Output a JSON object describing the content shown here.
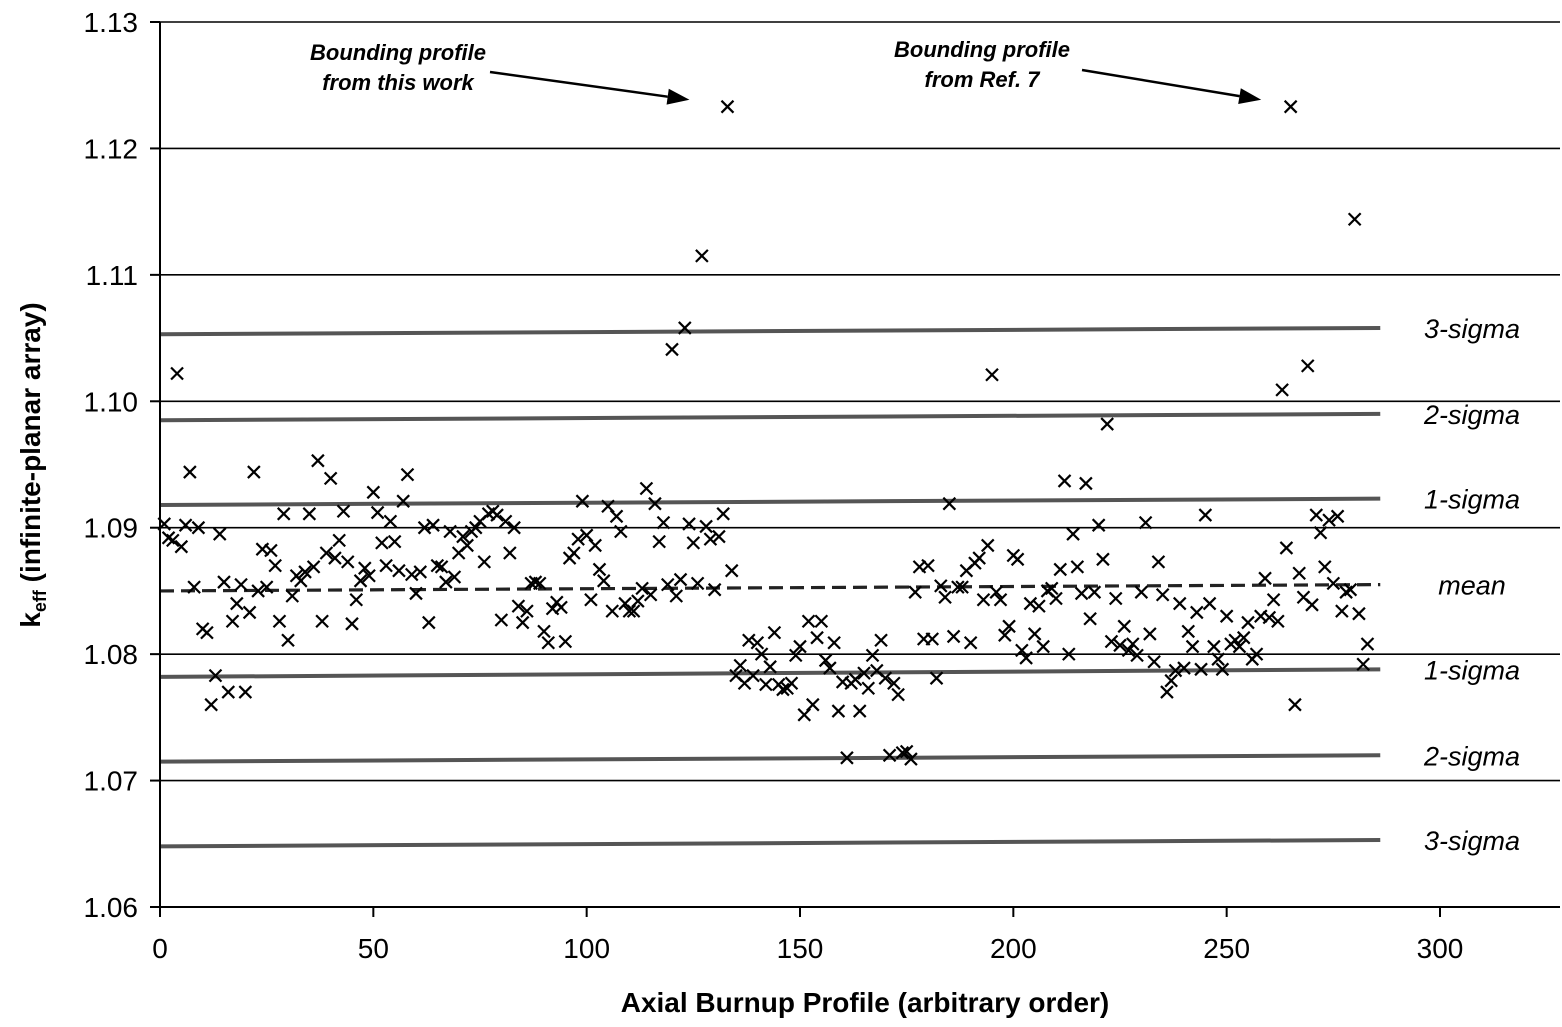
{
  "chart_data": {
    "type": "scatter",
    "title": "",
    "xlabel": "Axial Burnup Profile (arbitrary order)",
    "ylabel_main": "k",
    "ylabel_sub": "eff",
    "ylabel_rest": " (infinite-planar array)",
    "xlim": [
      0,
      320
    ],
    "ylim": [
      1.06,
      1.13
    ],
    "xticks": [
      "0",
      "50",
      "100",
      "150",
      "200",
      "250",
      "300"
    ],
    "yticks": [
      "1.06",
      "1.07",
      "1.08",
      "1.09",
      "1.10",
      "1.11",
      "1.12",
      "1.13"
    ],
    "grid": "horizontal",
    "marker": "x",
    "reference_lines": [
      {
        "label": "3-sigma",
        "y0": 1.1053,
        "y1": 1.1058,
        "style": "solid"
      },
      {
        "label": "2-sigma",
        "y0": 1.0985,
        "y1": 1.099,
        "style": "solid"
      },
      {
        "label": "1-sigma",
        "y0": 1.0918,
        "y1": 1.0923,
        "style": "solid"
      },
      {
        "label": "mean",
        "y0": 1.085,
        "y1": 1.0855,
        "style": "dashed"
      },
      {
        "label": "1-sigma",
        "y0": 1.0782,
        "y1": 1.0788,
        "style": "solid"
      },
      {
        "label": "2-sigma",
        "y0": 1.0715,
        "y1": 1.072,
        "style": "solid"
      },
      {
        "label": "3-sigma",
        "y0": 1.0648,
        "y1": 1.0653,
        "style": "solid"
      }
    ],
    "annotations": [
      {
        "lines": [
          "Bounding profile",
          "from this work"
        ],
        "target": [
          133,
          1.1233
        ]
      },
      {
        "lines": [
          "Bounding profile",
          "from Ref. 7"
        ],
        "target": [
          267,
          1.1233
        ]
      }
    ],
    "points": [
      [
        1,
        1.0903
      ],
      [
        2,
        1.0892
      ],
      [
        3,
        1.089
      ],
      [
        4,
        1.1022
      ],
      [
        5,
        1.0885
      ],
      [
        6,
        1.0902
      ],
      [
        7,
        1.0944
      ],
      [
        8,
        1.0853
      ],
      [
        9,
        1.09
      ],
      [
        10,
        1.082
      ],
      [
        11,
        1.0817
      ],
      [
        12,
        1.076
      ],
      [
        13,
        1.0783
      ],
      [
        14,
        1.0895
      ],
      [
        15,
        1.0857
      ],
      [
        16,
        1.077
      ],
      [
        17,
        1.0826
      ],
      [
        18,
        1.084
      ],
      [
        19,
        1.0855
      ],
      [
        20,
        1.077
      ],
      [
        21,
        1.0833
      ],
      [
        22,
        1.0944
      ],
      [
        23,
        1.085
      ],
      [
        24,
        1.0883
      ],
      [
        25,
        1.0853
      ],
      [
        26,
        1.0882
      ],
      [
        27,
        1.087
      ],
      [
        28,
        1.0826
      ],
      [
        29,
        1.0911
      ],
      [
        30,
        1.0811
      ],
      [
        31,
        1.0846
      ],
      [
        32,
        1.0862
      ],
      [
        33,
        1.0858
      ],
      [
        34,
        1.0865
      ],
      [
        35,
        1.0911
      ],
      [
        36,
        1.0869
      ],
      [
        37,
        1.0953
      ],
      [
        38,
        1.0826
      ],
      [
        39,
        1.088
      ],
      [
        40,
        1.0939
      ],
      [
        41,
        1.0876
      ],
      [
        42,
        1.089
      ],
      [
        43,
        1.0913
      ],
      [
        44,
        1.0873
      ],
      [
        45,
        1.0824
      ],
      [
        46,
        1.0843
      ],
      [
        47,
        1.0858
      ],
      [
        48,
        1.0868
      ],
      [
        49,
        1.0862
      ],
      [
        50,
        1.0928
      ],
      [
        51,
        1.0912
      ],
      [
        52,
        1.0888
      ],
      [
        53,
        1.087
      ],
      [
        54,
        1.0905
      ],
      [
        55,
        1.0889
      ],
      [
        56,
        1.0866
      ],
      [
        57,
        1.0921
      ],
      [
        58,
        1.0942
      ],
      [
        59,
        1.0863
      ],
      [
        60,
        1.0848
      ],
      [
        61,
        1.0865
      ],
      [
        62,
        1.09
      ],
      [
        63,
        1.0825
      ],
      [
        64,
        1.0902
      ],
      [
        65,
        1.087
      ],
      [
        66,
        1.0869
      ],
      [
        67,
        1.0857
      ],
      [
        68,
        1.0897
      ],
      [
        69,
        1.0861
      ],
      [
        70,
        1.088
      ],
      [
        71,
        1.0893
      ],
      [
        72,
        1.0886
      ],
      [
        73,
        1.0897
      ],
      [
        74,
        1.09
      ],
      [
        75,
        1.0905
      ],
      [
        76,
        1.0873
      ],
      [
        77,
        1.0911
      ],
      [
        78,
        1.0913
      ],
      [
        79,
        1.091
      ],
      [
        80,
        1.0827
      ],
      [
        81,
        1.0905
      ],
      [
        82,
        1.088
      ],
      [
        83,
        1.09
      ],
      [
        84,
        1.0838
      ],
      [
        85,
        1.0825
      ],
      [
        86,
        1.0834
      ],
      [
        87,
        1.0856
      ],
      [
        88,
        1.0857
      ],
      [
        89,
        1.0856
      ],
      [
        90,
        1.0818
      ],
      [
        91,
        1.0809
      ],
      [
        92,
        1.0836
      ],
      [
        93,
        1.0841
      ],
      [
        94,
        1.0837
      ],
      [
        95,
        1.081
      ],
      [
        96,
        1.0876
      ],
      [
        97,
        1.088
      ],
      [
        98,
        1.0891
      ],
      [
        99,
        1.0921
      ],
      [
        100,
        1.0894
      ],
      [
        101,
        1.0843
      ],
      [
        102,
        1.0886
      ],
      [
        103,
        1.0867
      ],
      [
        104,
        1.0858
      ],
      [
        105,
        1.0917
      ],
      [
        106,
        1.0834
      ],
      [
        107,
        1.0909
      ],
      [
        108,
        1.0897
      ],
      [
        109,
        1.084
      ],
      [
        110,
        1.0834
      ],
      [
        111,
        1.0834
      ],
      [
        112,
        1.0842
      ],
      [
        113,
        1.0852
      ],
      [
        114,
        1.0931
      ],
      [
        115,
        1.0847
      ],
      [
        116,
        1.0919
      ],
      [
        117,
        1.0889
      ],
      [
        118,
        1.0904
      ],
      [
        119,
        1.0855
      ],
      [
        120,
        1.1041
      ],
      [
        121,
        1.0846
      ],
      [
        122,
        1.0859
      ],
      [
        123,
        1.1058
      ],
      [
        124,
        1.0903
      ],
      [
        125,
        1.0888
      ],
      [
        126,
        1.0856
      ],
      [
        127,
        1.1115
      ],
      [
        128,
        1.0901
      ],
      [
        129,
        1.0891
      ],
      [
        130,
        1.0851
      ],
      [
        131,
        1.0893
      ],
      [
        132,
        1.0911
      ],
      [
        133,
        1.1233
      ],
      [
        134,
        1.0866
      ],
      [
        135,
        1.0783
      ],
      [
        136,
        1.0791
      ],
      [
        137,
        1.0777
      ],
      [
        138,
        1.0811
      ],
      [
        139,
        1.0783
      ],
      [
        140,
        1.0809
      ],
      [
        141,
        1.08
      ],
      [
        142,
        1.0776
      ],
      [
        143,
        1.079
      ],
      [
        144,
        1.0817
      ],
      [
        145,
        1.0776
      ],
      [
        146,
        1.0772
      ],
      [
        147,
        1.0773
      ],
      [
        148,
        1.0777
      ],
      [
        149,
        1.0799
      ],
      [
        150,
        1.0806
      ],
      [
        151,
        1.0752
      ],
      [
        152,
        1.0826
      ],
      [
        153,
        1.076
      ],
      [
        154,
        1.0813
      ],
      [
        155,
        1.0826
      ],
      [
        156,
        1.0795
      ],
      [
        157,
        1.0789
      ],
      [
        158,
        1.0809
      ],
      [
        159,
        1.0755
      ],
      [
        160,
        1.0778
      ],
      [
        161,
        1.0718
      ],
      [
        162,
        1.0777
      ],
      [
        163,
        1.078
      ],
      [
        164,
        1.0755
      ],
      [
        165,
        1.0785
      ],
      [
        166,
        1.0773
      ],
      [
        167,
        1.0799
      ],
      [
        168,
        1.0787
      ],
      [
        169,
        1.0811
      ],
      [
        170,
        1.0781
      ],
      [
        171,
        1.072
      ],
      [
        172,
        1.0777
      ],
      [
        173,
        1.0768
      ],
      [
        174,
        1.0722
      ],
      [
        175,
        1.0723
      ],
      [
        176,
        1.0717
      ],
      [
        177,
        1.0849
      ],
      [
        178,
        1.0869
      ],
      [
        179,
        1.0812
      ],
      [
        180,
        1.087
      ],
      [
        181,
        1.0812
      ],
      [
        182,
        1.0781
      ],
      [
        183,
        1.0854
      ],
      [
        184,
        1.0845
      ],
      [
        185,
        1.0919
      ],
      [
        186,
        1.0814
      ],
      [
        187,
        1.0853
      ],
      [
        188,
        1.0853
      ],
      [
        189,
        1.0866
      ],
      [
        190,
        1.0809
      ],
      [
        191,
        1.0872
      ],
      [
        192,
        1.0876
      ],
      [
        193,
        1.0843
      ],
      [
        194,
        1.0886
      ],
      [
        195,
        1.1021
      ],
      [
        196,
        1.0849
      ],
      [
        197,
        1.0843
      ],
      [
        198,
        1.0815
      ],
      [
        199,
        1.0822
      ],
      [
        200,
        1.0878
      ],
      [
        201,
        1.0875
      ],
      [
        202,
        1.0803
      ],
      [
        203,
        1.0797
      ],
      [
        204,
        1.084
      ],
      [
        205,
        1.0816
      ],
      [
        206,
        1.0838
      ],
      [
        207,
        1.0806
      ],
      [
        208,
        1.085
      ],
      [
        209,
        1.0852
      ],
      [
        210,
        1.0844
      ],
      [
        211,
        1.0867
      ],
      [
        212,
        1.0937
      ],
      [
        213,
        1.08
      ],
      [
        214,
        1.0895
      ],
      [
        215,
        1.0869
      ],
      [
        216,
        1.0848
      ],
      [
        217,
        1.0935
      ],
      [
        218,
        1.0828
      ],
      [
        219,
        1.0849
      ],
      [
        220,
        1.0902
      ],
      [
        221,
        1.0875
      ],
      [
        222,
        1.0982
      ],
      [
        223,
        1.081
      ],
      [
        224,
        1.0844
      ],
      [
        225,
        1.0807
      ],
      [
        226,
        1.0822
      ],
      [
        227,
        1.0803
      ],
      [
        228,
        1.0808
      ],
      [
        229,
        1.0799
      ],
      [
        230,
        1.0849
      ],
      [
        231,
        1.0904
      ],
      [
        232,
        1.0816
      ],
      [
        233,
        1.0794
      ],
      [
        234,
        1.0873
      ],
      [
        235,
        1.0847
      ],
      [
        236,
        1.077
      ],
      [
        237,
        1.0779
      ],
      [
        238,
        1.0787
      ],
      [
        239,
        1.084
      ],
      [
        240,
        1.0789
      ],
      [
        241,
        1.0818
      ],
      [
        242,
        1.0806
      ],
      [
        243,
        1.0833
      ],
      [
        244,
        1.0788
      ],
      [
        245,
        1.091
      ],
      [
        246,
        1.084
      ],
      [
        247,
        1.0806
      ],
      [
        248,
        1.0796
      ],
      [
        249,
        1.0788
      ],
      [
        250,
        1.083
      ],
      [
        251,
        1.0808
      ],
      [
        252,
        1.0811
      ],
      [
        253,
        1.0806
      ],
      [
        254,
        1.0813
      ],
      [
        255,
        1.0825
      ],
      [
        256,
        1.0796
      ],
      [
        257,
        1.08
      ],
      [
        258,
        1.083
      ],
      [
        259,
        1.086
      ],
      [
        260,
        1.0829
      ],
      [
        261,
        1.0843
      ],
      [
        262,
        1.0826
      ],
      [
        263,
        1.1009
      ],
      [
        264,
        1.0884
      ],
      [
        265,
        1.1233
      ],
      [
        266,
        1.076
      ],
      [
        267,
        1.0864
      ],
      [
        268,
        1.0845
      ],
      [
        269,
        1.1028
      ],
      [
        270,
        1.0839
      ],
      [
        271,
        1.091
      ],
      [
        272,
        1.0896
      ],
      [
        273,
        1.0869
      ],
      [
        274,
        1.0906
      ],
      [
        275,
        1.0856
      ],
      [
        276,
        1.0909
      ],
      [
        277,
        1.0834
      ],
      [
        278,
        1.0849
      ],
      [
        279,
        1.0851
      ],
      [
        280,
        1.1144
      ],
      [
        281,
        1.0832
      ],
      [
        282,
        1.0792
      ],
      [
        283,
        1.0808
      ]
    ]
  }
}
